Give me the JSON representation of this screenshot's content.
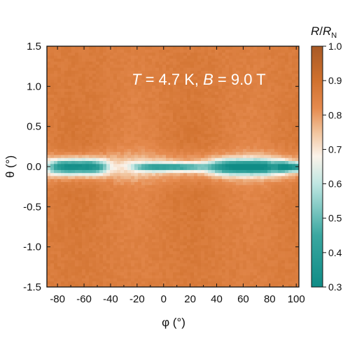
{
  "chart_data": {
    "type": "heatmap",
    "title": "",
    "annotation": {
      "T_symbol": "T",
      "T_value": " = 4.7 K, ",
      "B_symbol": "B",
      "B_value": " = 9.0 T"
    },
    "xlabel": "φ (°)",
    "ylabel": "θ (°)",
    "xlim": [
      -88,
      102
    ],
    "ylim": [
      -1.5,
      1.5
    ],
    "xticks": [
      -80,
      -60,
      -40,
      -20,
      0,
      20,
      40,
      60,
      80,
      100
    ],
    "xtick_labels": [
      "-80",
      "-60",
      "-40",
      "-20",
      "0",
      "20",
      "40",
      "60",
      "80",
      "100"
    ],
    "yticks": [
      -1.5,
      -1.0,
      -0.5,
      0.0,
      0.5,
      1.0,
      1.5
    ],
    "ytick_labels": [
      "-1.5",
      "-1.0",
      "-0.5",
      "0.0",
      "0.5",
      "1.0",
      "1.5"
    ],
    "colorbar": {
      "label_main": "R",
      "label_slash": "/",
      "label_R": "R",
      "label_sub": "N",
      "range": [
        0.3,
        1.0
      ],
      "ticks": [
        0.3,
        0.4,
        0.5,
        0.6,
        0.7,
        0.8,
        0.9,
        1.0
      ],
      "tick_labels": [
        "0.3",
        "0.4",
        "0.5",
        "0.6",
        "0.7",
        "0.8",
        "0.9",
        "1.0"
      ],
      "stops": [
        {
          "value": 0.3,
          "color": "#0f8c86"
        },
        {
          "value": 0.45,
          "color": "#3aa7a0"
        },
        {
          "value": 0.6,
          "color": "#bfe6e2"
        },
        {
          "value": 0.68,
          "color": "#fbf3ea"
        },
        {
          "value": 0.75,
          "color": "#f1c39c"
        },
        {
          "value": 0.82,
          "color": "#e58a4e"
        },
        {
          "value": 0.9,
          "color": "#d0712e"
        },
        {
          "value": 1.0,
          "color": "#a85a26"
        }
      ]
    },
    "background_value": 0.86,
    "low_resistance_regions": [
      {
        "phi_center": -65,
        "phi_halfwidth": 22,
        "theta_center": 0.0,
        "theta_halfwidth": 0.09,
        "min_value": 0.4
      },
      {
        "phi_center": 5,
        "phi_halfwidth": 28,
        "theta_center": 0.0,
        "theta_halfwidth": 0.05,
        "min_value": 0.5
      },
      {
        "phi_center": 62,
        "phi_halfwidth": 28,
        "theta_center": 0.0,
        "theta_halfwidth": 0.09,
        "min_value": 0.4
      },
      {
        "phi_center": 96,
        "phi_halfwidth": 10,
        "theta_center": 0.0,
        "theta_halfwidth": 0.06,
        "min_value": 0.45
      }
    ],
    "transition_halfwidth_theta": 0.17
  }
}
